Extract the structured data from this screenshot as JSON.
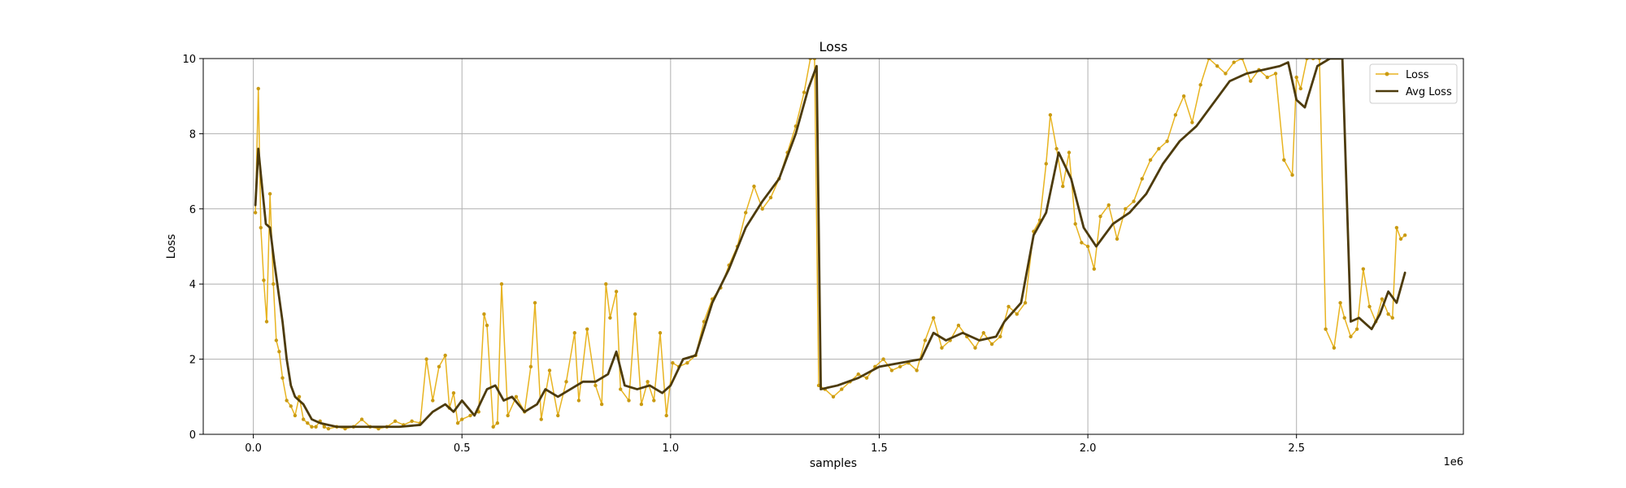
{
  "chart_data": {
    "type": "line",
    "title": "Loss",
    "xlabel": "samples",
    "ylabel": "Loss",
    "x_offset_label": "1e6",
    "xlim": [
      -0.12,
      2.9
    ],
    "ylim": [
      0,
      10
    ],
    "xticks": [
      0.0,
      0.5,
      1.0,
      1.5,
      2.0,
      2.5
    ],
    "xtick_labels": [
      "0.0",
      "0.5",
      "1.0",
      "1.5",
      "2.0",
      "2.5"
    ],
    "yticks": [
      0,
      2,
      4,
      6,
      8,
      10
    ],
    "ytick_labels": [
      "0",
      "2",
      "4",
      "6",
      "8",
      "10"
    ],
    "grid": true,
    "legend_position": "top-right",
    "colors": {
      "loss": "#e8b421",
      "avg_loss": "#4d3b0c"
    },
    "series": [
      {
        "name": "Loss",
        "style": "line-with-markers",
        "x": [
          0.005,
          0.012,
          0.018,
          0.025,
          0.032,
          0.04,
          0.048,
          0.055,
          0.062,
          0.07,
          0.08,
          0.09,
          0.1,
          0.11,
          0.12,
          0.13,
          0.14,
          0.15,
          0.16,
          0.17,
          0.18,
          0.2,
          0.22,
          0.24,
          0.26,
          0.28,
          0.3,
          0.32,
          0.34,
          0.36,
          0.38,
          0.4,
          0.415,
          0.43,
          0.445,
          0.46,
          0.47,
          0.48,
          0.49,
          0.5,
          0.52,
          0.54,
          0.553,
          0.56,
          0.575,
          0.585,
          0.595,
          0.61,
          0.63,
          0.65,
          0.665,
          0.675,
          0.69,
          0.71,
          0.73,
          0.75,
          0.77,
          0.78,
          0.8,
          0.82,
          0.835,
          0.845,
          0.855,
          0.87,
          0.88,
          0.9,
          0.915,
          0.93,
          0.945,
          0.96,
          0.975,
          0.99,
          1.005,
          1.02,
          1.04,
          1.06,
          1.08,
          1.1,
          1.12,
          1.14,
          1.16,
          1.18,
          1.2,
          1.22,
          1.24,
          1.26,
          1.28,
          1.3,
          1.32,
          1.335,
          1.345,
          1.355,
          1.37,
          1.39,
          1.41,
          1.43,
          1.45,
          1.47,
          1.49,
          1.51,
          1.53,
          1.55,
          1.57,
          1.59,
          1.61,
          1.63,
          1.65,
          1.67,
          1.69,
          1.71,
          1.73,
          1.75,
          1.77,
          1.79,
          1.81,
          1.83,
          1.85,
          1.87,
          1.885,
          1.9,
          1.91,
          1.925,
          1.94,
          1.955,
          1.97,
          1.985,
          2.0,
          2.015,
          2.03,
          2.05,
          2.07,
          2.09,
          2.11,
          2.13,
          2.15,
          2.17,
          2.19,
          2.21,
          2.23,
          2.25,
          2.27,
          2.29,
          2.31,
          2.33,
          2.35,
          2.37,
          2.39,
          2.41,
          2.43,
          2.45,
          2.47,
          2.49,
          2.5,
          2.51,
          2.525,
          2.54,
          2.555,
          2.57,
          2.59,
          2.605,
          2.615,
          2.63,
          2.645,
          2.66,
          2.675,
          2.69,
          2.705,
          2.72,
          2.73,
          2.74,
          2.75,
          2.76
        ],
        "y": [
          5.9,
          9.2,
          5.5,
          4.1,
          3.0,
          6.4,
          4.0,
          2.5,
          2.2,
          1.5,
          0.9,
          0.75,
          0.5,
          1.0,
          0.4,
          0.3,
          0.2,
          0.2,
          0.35,
          0.2,
          0.15,
          0.2,
          0.15,
          0.2,
          0.4,
          0.2,
          0.15,
          0.2,
          0.35,
          0.25,
          0.35,
          0.3,
          2.0,
          0.9,
          1.8,
          2.1,
          0.7,
          1.1,
          0.3,
          0.4,
          0.5,
          0.6,
          3.2,
          2.9,
          0.2,
          0.3,
          4.0,
          0.5,
          1.0,
          0.6,
          1.8,
          3.5,
          0.4,
          1.7,
          0.5,
          1.4,
          2.7,
          0.9,
          2.8,
          1.3,
          0.8,
          4.0,
          3.1,
          3.8,
          1.2,
          0.9,
          3.2,
          0.8,
          1.4,
          0.9,
          2.7,
          0.5,
          1.9,
          1.8,
          1.9,
          2.1,
          3.0,
          3.6,
          3.9,
          4.5,
          5.0,
          5.9,
          6.6,
          6.0,
          6.3,
          6.8,
          7.5,
          8.2,
          9.1,
          10.0,
          10.0,
          1.3,
          1.2,
          1.0,
          1.2,
          1.4,
          1.6,
          1.5,
          1.8,
          2.0,
          1.7,
          1.8,
          1.9,
          1.7,
          2.5,
          3.1,
          2.3,
          2.5,
          2.9,
          2.6,
          2.3,
          2.7,
          2.4,
          2.6,
          3.4,
          3.2,
          3.5,
          5.4,
          5.7,
          7.2,
          8.5,
          7.6,
          6.6,
          7.5,
          5.6,
          5.1,
          5.0,
          4.4,
          5.8,
          6.1,
          5.2,
          6.0,
          6.2,
          6.8,
          7.3,
          7.6,
          7.8,
          8.5,
          9.0,
          8.3,
          9.3,
          10.0,
          9.8,
          9.6,
          9.9,
          10.0,
          9.4,
          9.7,
          9.5,
          9.6,
          7.3,
          6.9,
          9.5,
          9.2,
          10.0,
          10.0,
          10.0,
          2.8,
          2.3,
          3.5,
          3.1,
          2.6,
          2.8,
          4.4,
          3.4,
          3.0,
          3.6,
          3.2,
          3.1,
          5.5,
          5.2,
          5.3
        ],
        "color": "#e8b421"
      },
      {
        "name": "Avg Loss",
        "style": "line",
        "x": [
          0.005,
          0.012,
          0.02,
          0.03,
          0.04,
          0.05,
          0.06,
          0.07,
          0.08,
          0.09,
          0.1,
          0.12,
          0.14,
          0.16,
          0.18,
          0.2,
          0.25,
          0.3,
          0.35,
          0.4,
          0.43,
          0.46,
          0.48,
          0.5,
          0.53,
          0.56,
          0.58,
          0.6,
          0.62,
          0.65,
          0.68,
          0.7,
          0.73,
          0.76,
          0.79,
          0.82,
          0.85,
          0.87,
          0.89,
          0.92,
          0.95,
          0.98,
          1.0,
          1.03,
          1.06,
          1.1,
          1.14,
          1.18,
          1.22,
          1.26,
          1.3,
          1.33,
          1.35,
          1.36,
          1.4,
          1.45,
          1.5,
          1.55,
          1.6,
          1.63,
          1.66,
          1.7,
          1.74,
          1.78,
          1.8,
          1.84,
          1.87,
          1.9,
          1.93,
          1.96,
          1.99,
          2.02,
          2.06,
          2.1,
          2.14,
          2.18,
          2.22,
          2.26,
          2.3,
          2.34,
          2.38,
          2.42,
          2.46,
          2.48,
          2.5,
          2.52,
          2.55,
          2.58,
          2.61,
          2.63,
          2.65,
          2.68,
          2.7,
          2.72,
          2.74,
          2.76
        ],
        "y": [
          6.1,
          7.6,
          6.7,
          5.6,
          5.5,
          4.6,
          3.8,
          3.0,
          2.0,
          1.3,
          1.0,
          0.8,
          0.4,
          0.3,
          0.25,
          0.2,
          0.2,
          0.2,
          0.2,
          0.25,
          0.6,
          0.8,
          0.6,
          0.9,
          0.5,
          1.2,
          1.3,
          0.9,
          1.0,
          0.6,
          0.8,
          1.2,
          1.0,
          1.2,
          1.4,
          1.4,
          1.6,
          2.2,
          1.3,
          1.2,
          1.3,
          1.1,
          1.3,
          2.0,
          2.1,
          3.5,
          4.4,
          5.5,
          6.2,
          6.8,
          8.0,
          9.2,
          9.8,
          1.2,
          1.3,
          1.5,
          1.8,
          1.9,
          2.0,
          2.7,
          2.5,
          2.7,
          2.5,
          2.6,
          3.0,
          3.5,
          5.3,
          5.9,
          7.5,
          6.8,
          5.5,
          5.0,
          5.6,
          5.9,
          6.4,
          7.2,
          7.8,
          8.2,
          8.8,
          9.4,
          9.6,
          9.7,
          9.8,
          9.9,
          8.9,
          8.7,
          9.8,
          10.0,
          10.0,
          3.0,
          3.1,
          2.8,
          3.2,
          3.8,
          3.5,
          4.3
        ],
        "color": "#4d3b0c"
      }
    ]
  }
}
